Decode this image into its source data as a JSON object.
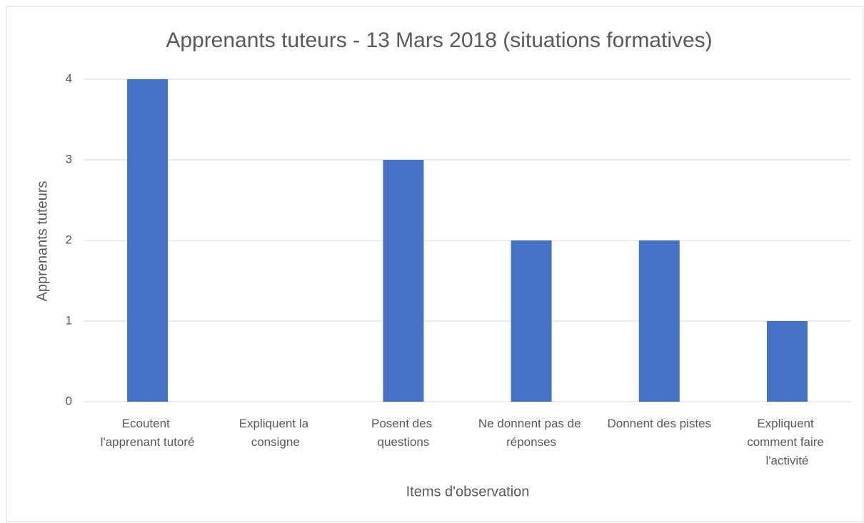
{
  "chart_data": {
    "type": "bar",
    "title": "Apprenants tuteurs - 13 Mars 2018 (situations formatives)",
    "x_label": "Items d'observation",
    "y_label": "Apprenants tuteurs",
    "categories": [
      "Ecoutent l'apprenant tutoré",
      "Expliquent la consigne",
      "Posent des questions",
      "Ne donnent pas de réponses",
      "Donnent des pistes",
      "Expliquent comment faire l'activité"
    ],
    "values": [
      4,
      0,
      3,
      2,
      2,
      1
    ],
    "color": "#4472c4",
    "ylim": [
      0,
      4
    ],
    "yticks": [
      0,
      1,
      2,
      3,
      4
    ],
    "grid": true
  }
}
